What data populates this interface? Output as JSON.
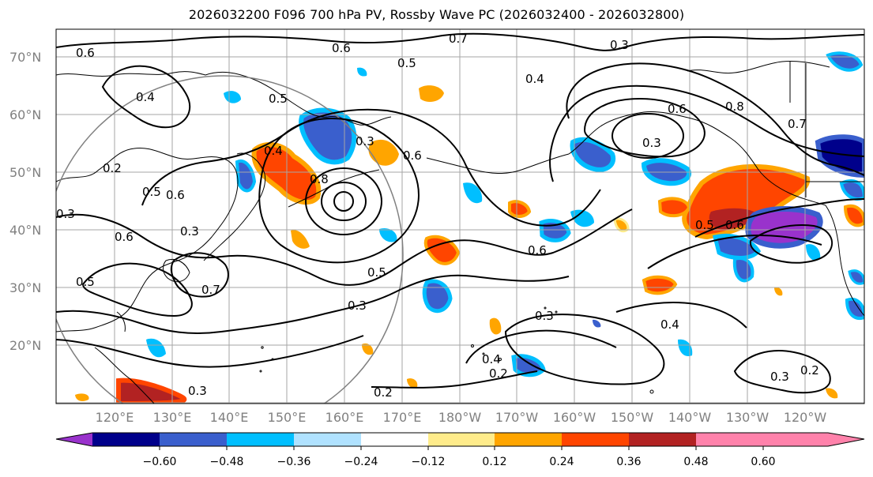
{
  "title": "2026032200 F096 700 hPa PV, Rossby Wave PC (2026032400 - 2026032800)",
  "map": {
    "lat_labels": [
      "70°N",
      "60°N",
      "50°N",
      "40°N",
      "30°N",
      "20°N"
    ],
    "lon_labels": [
      "120°E",
      "130°E",
      "140°E",
      "150°E",
      "160°E",
      "170°E",
      "180°W",
      "170°W",
      "160°W",
      "150°W",
      "140°W",
      "130°W",
      "120°W"
    ],
    "contour_labels": [
      "0.7",
      "0.3",
      "0.6",
      "0.6",
      "0.5",
      "0.4",
      "0.5",
      "0.8",
      "0.7",
      "0.6",
      "0.4",
      "0.3",
      "0.3",
      "0.4",
      "0.8",
      "0.6",
      "0.5",
      "0.6",
      "0.3",
      "0.3",
      "0.5",
      "0.5",
      "0.6",
      "0.6",
      "0.7",
      "0.3",
      "0.3",
      "0.4",
      "0.2",
      "0.4",
      "0.2",
      "0.3",
      "0.2",
      "0.3",
      "0.2",
      "0.5",
      "0.6"
    ]
  },
  "colorbar": {
    "ticks": [
      "−0.60",
      "−0.48",
      "−0.36",
      "−0.24",
      "−0.12",
      "0.12",
      "0.24",
      "0.36",
      "0.48",
      "0.60"
    ],
    "colors": [
      "#9932cc",
      "#00008b",
      "#3a5fcd",
      "#00bfff",
      "#b0e2ff",
      "#ffffff",
      "#ffec8b",
      "#ffa500",
      "#ff4500",
      "#b22222",
      "#ff82ab"
    ]
  }
}
